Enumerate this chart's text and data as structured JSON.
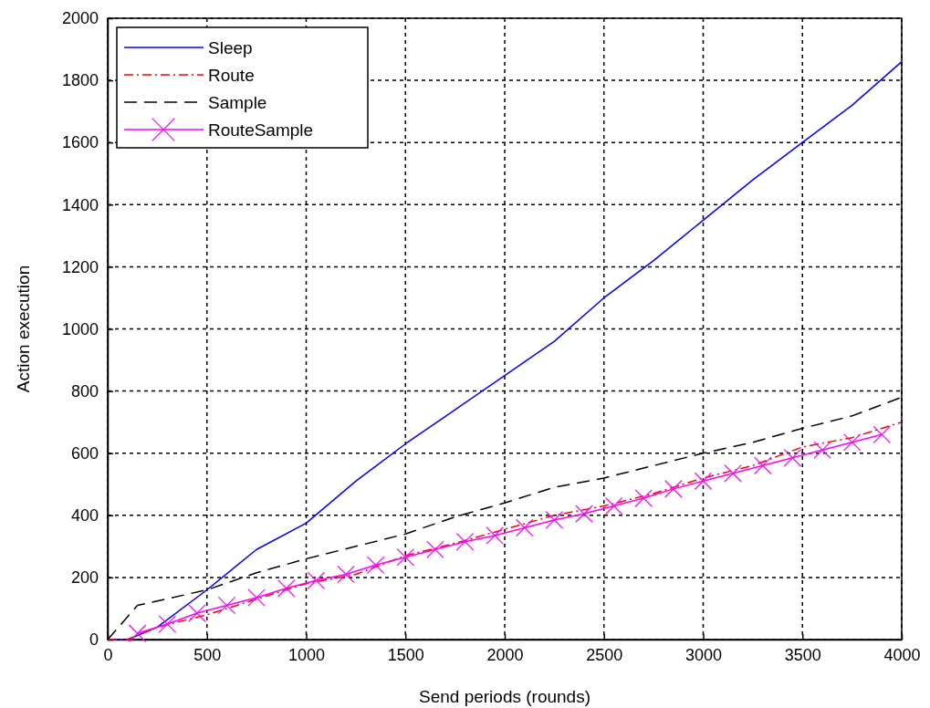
{
  "chart_data": {
    "type": "line",
    "xlabel": "Send periods (rounds)",
    "ylabel": "Action execution",
    "xlim": [
      0,
      4000
    ],
    "xticks": [
      0,
      500,
      1000,
      1500,
      2000,
      2500,
      3000,
      3500,
      4000
    ],
    "ylim": [
      0,
      2000
    ],
    "yticks": [
      0,
      200,
      400,
      600,
      800,
      1000,
      1200,
      1400,
      1600,
      1800,
      2000
    ],
    "grid": true,
    "legend": "top left",
    "series": [
      {
        "name": "Sleep",
        "color": "#0000ff",
        "line_style": "solid",
        "marker": "none",
        "x": [
          0,
          100,
          250,
          500,
          750,
          1000,
          1250,
          1500,
          1750,
          2000,
          2250,
          2500,
          2750,
          3000,
          3250,
          3500,
          3750,
          4000
        ],
        "values": [
          0,
          0,
          40,
          160,
          290,
          375,
          510,
          630,
          740,
          850,
          960,
          1100,
          1220,
          1350,
          1480,
          1600,
          1720,
          1860
        ]
      },
      {
        "name": "Route",
        "color": "#ff0000",
        "line_style": "dashdot",
        "marker": "none",
        "x": [
          0,
          100,
          250,
          500,
          750,
          1000,
          1250,
          1500,
          1750,
          2000,
          2250,
          2500,
          2750,
          3000,
          3250,
          3500,
          3750,
          4000
        ],
        "values": [
          0,
          0,
          40,
          80,
          130,
          180,
          210,
          270,
          310,
          355,
          400,
          430,
          470,
          520,
          560,
          620,
          650,
          700
        ]
      },
      {
        "name": "Sample",
        "color": "#000000",
        "line_style": "dashed",
        "marker": "none",
        "x": [
          0,
          150,
          500,
          750,
          1000,
          1250,
          1500,
          1750,
          2000,
          2250,
          2500,
          2750,
          3000,
          3250,
          3500,
          3750,
          4000
        ],
        "values": [
          0,
          110,
          160,
          215,
          260,
          300,
          340,
          395,
          440,
          490,
          520,
          560,
          600,
          635,
          680,
          720,
          780
        ]
      },
      {
        "name": "RouteSample",
        "color": "#ff00ff",
        "line_style": "solid",
        "marker": "cross",
        "x": [
          150,
          300,
          450,
          600,
          750,
          900,
          1050,
          1200,
          1350,
          1500,
          1650,
          1800,
          1950,
          2100,
          2250,
          2400,
          2550,
          2700,
          2850,
          3000,
          3150,
          3300,
          3450,
          3600,
          3750,
          3900
        ],
        "values": [
          20,
          50,
          85,
          110,
          135,
          165,
          190,
          210,
          240,
          265,
          290,
          315,
          335,
          360,
          385,
          405,
          430,
          455,
          485,
          510,
          535,
          560,
          585,
          610,
          635,
          660
        ]
      }
    ]
  }
}
